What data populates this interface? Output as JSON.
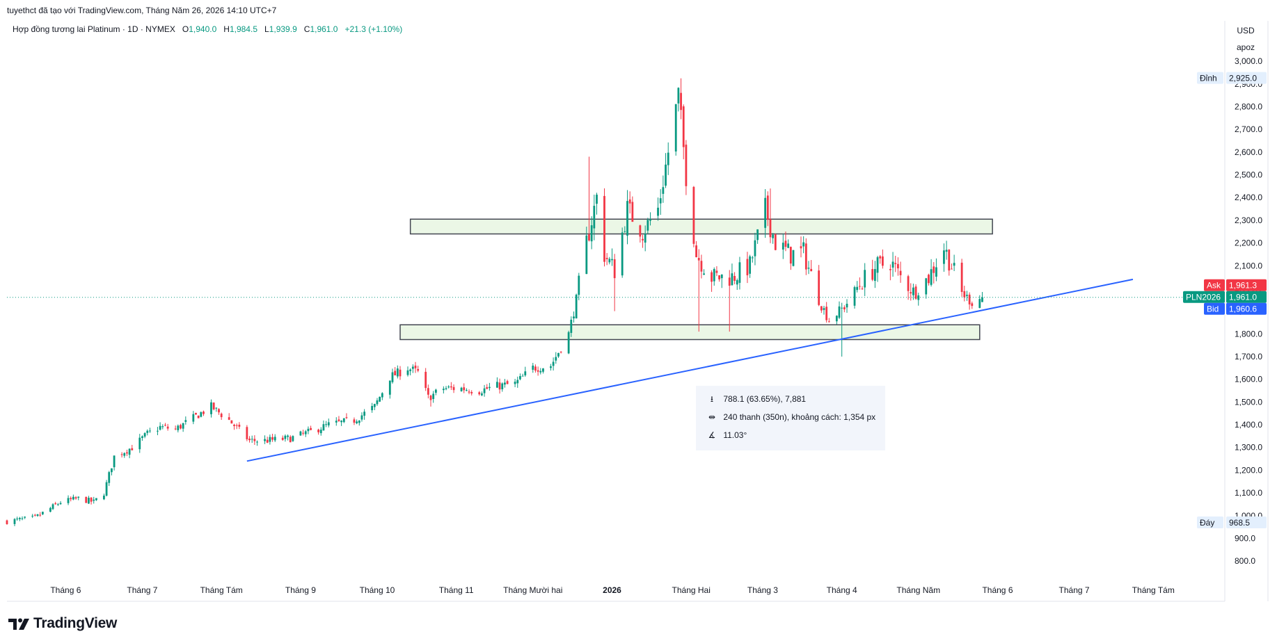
{
  "header": {
    "published_by": "tuyethct đã tạo với TradingView.com, Tháng Năm 26, 2026 14:10 UTC+7"
  },
  "legend": {
    "title": "Hợp đồng tương lai Platinum · 1D · NYMEX",
    "o_label": "O",
    "o_value": "1,940.0",
    "h_label": "H",
    "h_value": "1,984.5",
    "l_label": "L",
    "l_value": "1,939.9",
    "c_label": "C",
    "c_value": "1,961.0",
    "change": "+21.3 (+1.10%)"
  },
  "price_axis": {
    "currency": "USD",
    "mode": "apoz",
    "high_label": "Đỉnh",
    "high_value": "2,925.0",
    "low_label": "Đáy",
    "low_value": "968.5",
    "ask_label": "Ask",
    "ask_value": "1,961.3",
    "symbol_label": "PLN2026",
    "last_value": "1,961.0",
    "bid_label": "Bid",
    "bid_value": "1,960.6"
  },
  "measure": {
    "price_range": "788.1 (63.65%), 7,881",
    "bars_range": "240 thanh (350n), khoảng cách: 1,354 px",
    "angle": "11.03°",
    "icons": [
      "price-range-icon",
      "bars-range-icon",
      "angle-icon"
    ]
  },
  "colors": {
    "up": "#089981",
    "down": "#f23645",
    "trendline": "#2962ff",
    "zone_fill": "#ebf7e6",
    "zone_border": "#434651",
    "ask": "#f23645",
    "last": "#089981",
    "bid": "#2962ff"
  },
  "branding": {
    "logo_text": "TradingView"
  },
  "chart_data": {
    "type": "candlestick",
    "title": "Hợp đồng tương lai Platinum · 1D · NYMEX",
    "y_ticks": [
      800,
      900,
      1000,
      1100,
      1200,
      1300,
      1400,
      1500,
      1600,
      1700,
      1800,
      1900,
      2000,
      2100,
      2200,
      2300,
      2400,
      2500,
      2600,
      2700,
      2800,
      2900,
      3000
    ],
    "y_tick_labels": [
      "800.0",
      "900.0",
      "1,000.0",
      "1,100.0",
      "1,200.0",
      "1,300.0",
      "1,400.0",
      "1,500.0",
      "1,600.0",
      "1,700.0",
      "1,800.0",
      "1,900.0",
      "2,000.0",
      "2,100.0",
      "2,200.0",
      "2,300.0",
      "2,400.0",
      "2,500.0",
      "2,600.0",
      "2,700.0",
      "2,800.0",
      "2,900.0",
      "3,000.0"
    ],
    "ylim": [
      730,
      3080
    ],
    "x_labels": [
      "Tháng 6",
      "Tháng 7",
      "Tháng Tám",
      "Tháng 9",
      "Tháng 10",
      "Tháng 11",
      "Tháng Mười hai",
      "2026",
      "Tháng Hai",
      "Tháng 3",
      "Tháng 4",
      "Tháng Năm",
      "Tháng 6",
      "Tháng 7",
      "Tháng Tám"
    ],
    "x_label_dates": [
      "2025-06-01",
      "2025-07-01",
      "2025-08-01",
      "2025-09-01",
      "2025-10-01",
      "2025-11-01",
      "2025-12-01",
      "2026-01-01",
      "2026-02-01",
      "2026-03-01",
      "2026-04-01",
      "2026-05-01",
      "2026-06-01",
      "2026-07-01",
      "2026-08-01"
    ],
    "x_range": [
      "2025-05-09",
      "2026-08-29"
    ],
    "close_anchors": [
      [
        "2025-05-09",
        975
      ],
      [
        "2025-05-20",
        990
      ],
      [
        "2025-05-30",
        1060
      ],
      [
        "2025-06-06",
        1075
      ],
      [
        "2025-06-12",
        1060
      ],
      [
        "2025-06-16",
        1100
      ],
      [
        "2025-06-20",
        1260
      ],
      [
        "2025-06-27",
        1300
      ],
      [
        "2025-07-03",
        1360
      ],
      [
        "2025-07-08",
        1390
      ],
      [
        "2025-07-14",
        1380
      ],
      [
        "2025-07-21",
        1430
      ],
      [
        "2025-07-28",
        1480
      ],
      [
        "2025-08-04",
        1420
      ],
      [
        "2025-08-12",
        1330
      ],
      [
        "2025-08-18",
        1330
      ],
      [
        "2025-08-28",
        1340
      ],
      [
        "2025-09-05",
        1370
      ],
      [
        "2025-09-12",
        1400
      ],
      [
        "2025-09-22",
        1420
      ],
      [
        "2025-09-30",
        1480
      ],
      [
        "2025-10-06",
        1610
      ],
      [
        "2025-10-13",
        1650
      ],
      [
        "2025-10-17",
        1630
      ],
      [
        "2025-10-21",
        1520
      ],
      [
        "2025-10-27",
        1560
      ],
      [
        "2025-11-03",
        1560
      ],
      [
        "2025-11-10",
        1550
      ],
      [
        "2025-11-17",
        1570
      ],
      [
        "2025-11-24",
        1580
      ],
      [
        "2025-12-01",
        1650
      ],
      [
        "2025-12-08",
        1660
      ],
      [
        "2025-12-15",
        1800
      ],
      [
        "2025-12-18",
        1950
      ],
      [
        "2025-12-22",
        2200
      ],
      [
        "2025-12-26",
        2400
      ],
      [
        "2025-12-29",
        2150
      ],
      [
        "2026-01-02",
        2080
      ],
      [
        "2026-01-07",
        2350
      ],
      [
        "2026-01-13",
        2250
      ],
      [
        "2026-01-19",
        2350
      ],
      [
        "2026-01-23",
        2600
      ],
      [
        "2026-01-27",
        2850
      ],
      [
        "2026-01-30",
        2500
      ],
      [
        "2026-02-03",
        2150
      ],
      [
        "2026-02-09",
        2050
      ],
      [
        "2026-02-17",
        2050
      ],
      [
        "2026-02-24",
        2100
      ],
      [
        "2026-03-02",
        2350
      ],
      [
        "2026-03-06",
        2200
      ],
      [
        "2026-03-12",
        2150
      ],
      [
        "2026-03-17",
        2160
      ],
      [
        "2026-03-23",
        1950
      ],
      [
        "2026-03-27",
        1860
      ],
      [
        "2026-04-02",
        1920
      ],
      [
        "2026-04-08",
        2020
      ],
      [
        "2026-04-14",
        2090
      ],
      [
        "2026-04-20",
        2120
      ],
      [
        "2026-04-24",
        2050
      ],
      [
        "2026-04-30",
        1980
      ],
      [
        "2026-05-05",
        2050
      ],
      [
        "2026-05-11",
        2180
      ],
      [
        "2026-05-14",
        2100
      ],
      [
        "2026-05-18",
        1980
      ],
      [
        "2026-05-22",
        1940
      ],
      [
        "2026-05-26",
        1961
      ]
    ],
    "spike_highs": [
      [
        "2026-01-28",
        2925
      ],
      [
        "2026-03-04",
        2440
      ],
      [
        "2026-05-12",
        2210
      ],
      [
        "2025-12-23",
        2580
      ],
      [
        "2026-01-29",
        2810
      ]
    ],
    "spike_lows": [
      [
        "2026-04-01",
        1700
      ],
      [
        "2025-10-22",
        1480
      ],
      [
        "2026-02-04",
        1810
      ],
      [
        "2026-02-16",
        1810
      ],
      [
        "2026-01-02",
        1900
      ]
    ],
    "zones": [
      {
        "from": "2025-10-14",
        "to": "2026-05-30",
        "top": 2305,
        "bottom": 2240
      },
      {
        "from": "2025-10-10",
        "to": "2026-05-25",
        "top": 1840,
        "bottom": 1775
      }
    ],
    "trendline": {
      "from": [
        "2025-08-11",
        1240
      ],
      "to": [
        "2026-07-24",
        2040
      ]
    },
    "last_price": 1961.0,
    "grid": false,
    "legend_position": "top-left"
  }
}
